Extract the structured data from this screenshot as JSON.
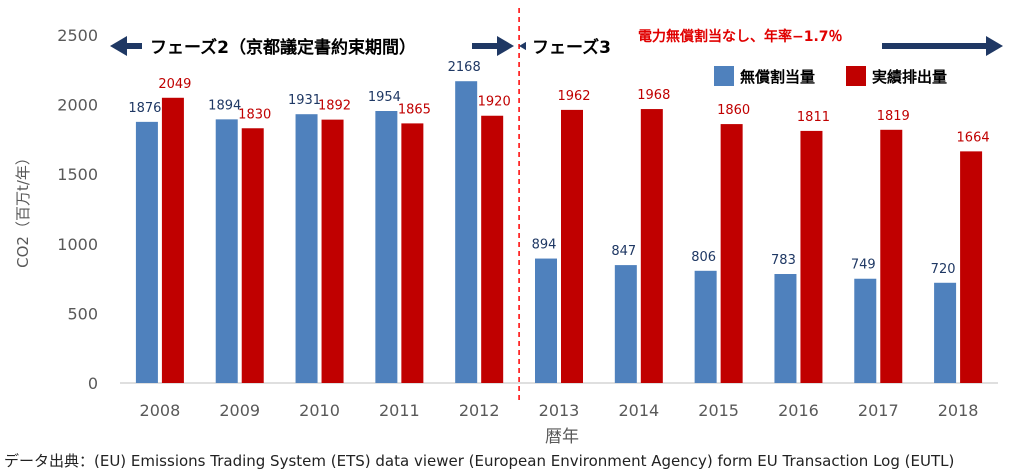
{
  "chart_data": {
    "type": "bar",
    "categories": [
      "2008",
      "2009",
      "2010",
      "2011",
      "2012",
      "2013",
      "2014",
      "2015",
      "2016",
      "2017",
      "2018"
    ],
    "series": [
      {
        "name": "無償割当量",
        "color": "#4f81bd",
        "label_color": "#1f3864",
        "values": [
          1876,
          1894,
          1931,
          1954,
          2168,
          894,
          847,
          806,
          783,
          749,
          720
        ]
      },
      {
        "name": "実績排出量",
        "color": "#c00000",
        "label_color": "#c00000",
        "values": [
          2049,
          1830,
          1892,
          1865,
          1920,
          1962,
          1968,
          1860,
          1811,
          1819,
          1664
        ]
      }
    ],
    "xlabel": "暦年",
    "ylabel": "CO2（百万t/年）",
    "ylim": [
      0,
      2500
    ],
    "yticks": [
      0,
      500,
      1000,
      1500,
      2000,
      2500
    ],
    "legend_position": "top-right",
    "phases": [
      {
        "label": "フェーズ2（京都議定書約束期間）",
        "from": "2008",
        "to": "2012"
      },
      {
        "label": "フェーズ3",
        "from": "2013",
        "to": "2018"
      }
    ],
    "phase3_note": "電力無償割当なし、年率−1.7％",
    "divider_color": "#ff0000",
    "arrow_color": "#1f3864"
  },
  "source_text": "データ出典：(EU) Emissions Trading System (ETS) data viewer (European Environment Agency) form EU Transaction Log (EUTL)"
}
